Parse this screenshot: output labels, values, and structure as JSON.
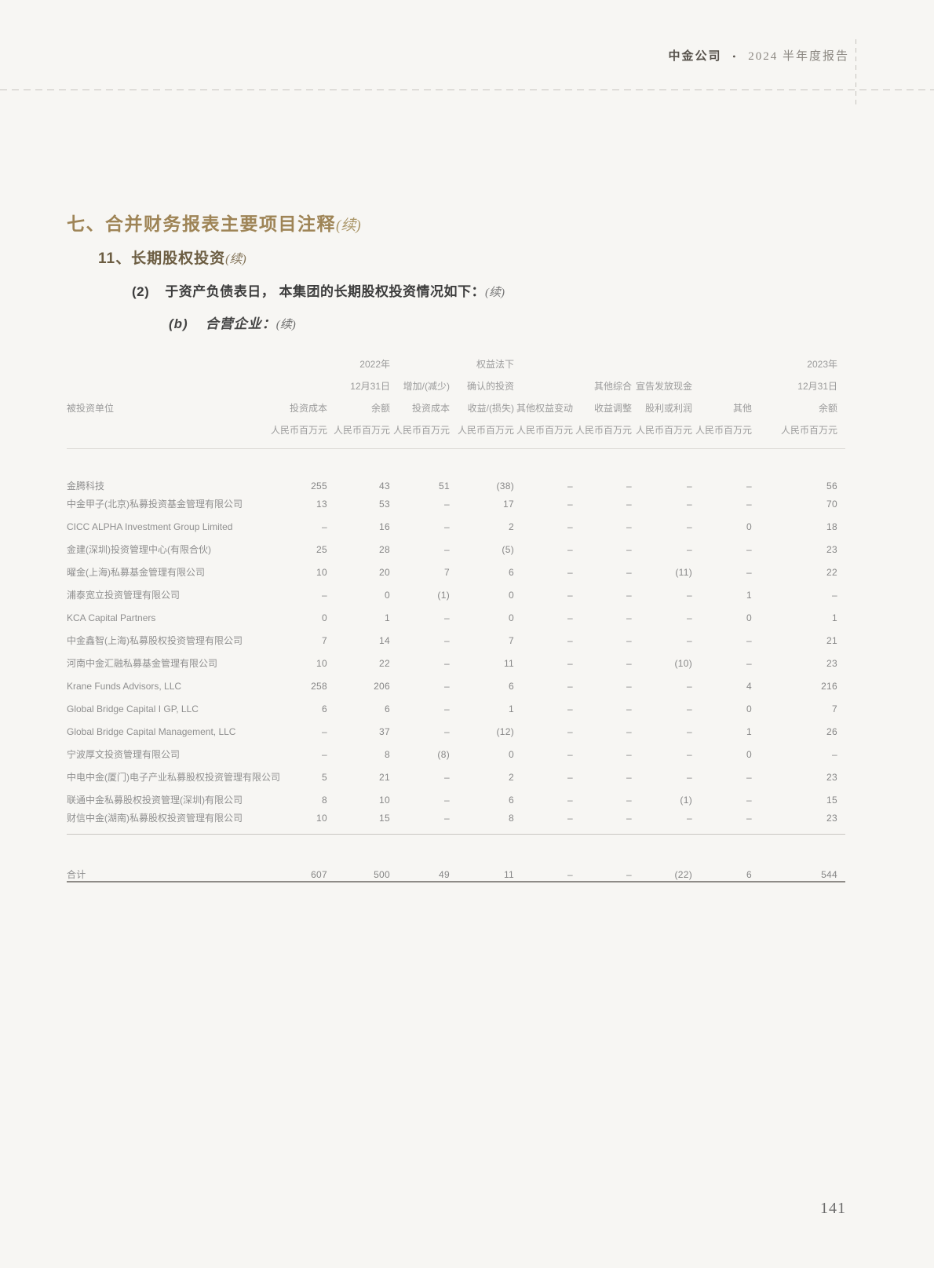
{
  "page": {
    "running_header": {
      "company": "中金公司",
      "bullet": "•",
      "report": "2024 半年度报告"
    },
    "page_number": "141"
  },
  "headings": {
    "h1": {
      "text": "七、合并财务报表主要项目注释",
      "cont": "(续)"
    },
    "h2": {
      "text": "11、长期股权投资",
      "cont": "(续)"
    },
    "h3": {
      "num": "(2)",
      "text": "于资产负债表日， 本集团的长期股权投资情况如下：",
      "cont": "(续)"
    },
    "h4": {
      "num": "(b)",
      "text": "合营企业：",
      "cont": "(续)"
    }
  },
  "table": {
    "columns": [
      {
        "lines": [
          "被投资单位",
          " "
        ]
      },
      {
        "lines": [
          "投资成本",
          "人民币百万元"
        ]
      },
      {
        "lines": [
          "2022年",
          "12月31日",
          "余额",
          "人民币百万元"
        ]
      },
      {
        "lines": [
          "增加/(减少)",
          "投资成本",
          "人民币百万元"
        ]
      },
      {
        "lines": [
          "权益法下",
          "确认的投资",
          "收益/(损失)",
          "人民币百万元"
        ]
      },
      {
        "lines": [
          "其他权益变动",
          "人民币百万元"
        ]
      },
      {
        "lines": [
          "其他综合",
          "收益调整",
          "人民币百万元"
        ]
      },
      {
        "lines": [
          "宣告发放现金",
          "股利或利润",
          "人民币百万元"
        ]
      },
      {
        "lines": [
          "其他",
          "人民币百万元"
        ]
      },
      {
        "lines": [
          "2023年",
          "12月31日",
          "余额",
          "人民币百万元"
        ]
      }
    ],
    "rows": [
      {
        "name": "金腾科技",
        "values": [
          "255",
          "43",
          "51",
          "(38)",
          "–",
          "–",
          "–",
          "–",
          "56"
        ]
      },
      {
        "name": "中金甲子(北京)私募投资基金管理有限公司",
        "values": [
          "13",
          "53",
          "–",
          "17",
          "–",
          "–",
          "–",
          "–",
          "70"
        ]
      },
      {
        "name": "CICC ALPHA Investment Group Limited",
        "values": [
          "–",
          "16",
          "–",
          "2",
          "–",
          "–",
          "–",
          "0",
          "18"
        ]
      },
      {
        "name": "金建(深圳)投资管理中心(有限合伙)",
        "values": [
          "25",
          "28",
          "–",
          "(5)",
          "–",
          "–",
          "–",
          "–",
          "23"
        ]
      },
      {
        "name": "曜金(上海)私募基金管理有限公司",
        "values": [
          "10",
          "20",
          "7",
          "6",
          "–",
          "–",
          "(11)",
          "–",
          "22"
        ]
      },
      {
        "name": "浦泰宽立投资管理有限公司",
        "values": [
          "–",
          "0",
          "(1)",
          "0",
          "–",
          "–",
          "–",
          "1",
          "–"
        ]
      },
      {
        "name": "KCA Capital Partners",
        "values": [
          "0",
          "1",
          "–",
          "0",
          "–",
          "–",
          "–",
          "0",
          "1"
        ]
      },
      {
        "name": "中金鑫智(上海)私募股权投资管理有限公司",
        "values": [
          "7",
          "14",
          "–",
          "7",
          "–",
          "–",
          "–",
          "–",
          "21"
        ]
      },
      {
        "name": "河南中金汇融私募基金管理有限公司",
        "values": [
          "10",
          "22",
          "–",
          "11",
          "–",
          "–",
          "(10)",
          "–",
          "23"
        ]
      },
      {
        "name": "Krane Funds Advisors, LLC",
        "values": [
          "258",
          "206",
          "–",
          "6",
          "–",
          "–",
          "–",
          "4",
          "216"
        ]
      },
      {
        "name": "Global Bridge Capital I GP, LLC",
        "values": [
          "6",
          "6",
          "–",
          "1",
          "–",
          "–",
          "–",
          "0",
          "7"
        ]
      },
      {
        "name": "Global Bridge Capital Management, LLC",
        "values": [
          "–",
          "37",
          "–",
          "(12)",
          "–",
          "–",
          "–",
          "1",
          "26"
        ]
      },
      {
        "name": "宁波厚文投资管理有限公司",
        "values": [
          "–",
          "8",
          "(8)",
          "0",
          "–",
          "–",
          "–",
          "0",
          "–"
        ]
      },
      {
        "name": "中电中金(厦门)电子产业私募股权投资管理有限公司",
        "values": [
          "5",
          "21",
          "–",
          "2",
          "–",
          "–",
          "–",
          "–",
          "23"
        ]
      },
      {
        "name": "联通中金私募股权投资管理(深圳)有限公司",
        "values": [
          "8",
          "10",
          "–",
          "6",
          "–",
          "–",
          "(1)",
          "–",
          "15"
        ]
      },
      {
        "name": "财信中金(湖南)私募股权投资管理有限公司",
        "values": [
          "10",
          "15",
          "–",
          "8",
          "–",
          "–",
          "–",
          "–",
          "23"
        ]
      }
    ],
    "total": {
      "name": "合计",
      "values": [
        "607",
        "500",
        "49",
        "11",
        "–",
        "–",
        "(22)",
        "6",
        "544"
      ]
    }
  },
  "colors": {
    "page_background": "#f7f6f3",
    "heading_gold": "#9e8456",
    "heading_brown": "#6c5d42",
    "body_dark": "#3d3d3d",
    "table_gray": "#8a8a8a",
    "rule_dark": "#8e8b87"
  }
}
